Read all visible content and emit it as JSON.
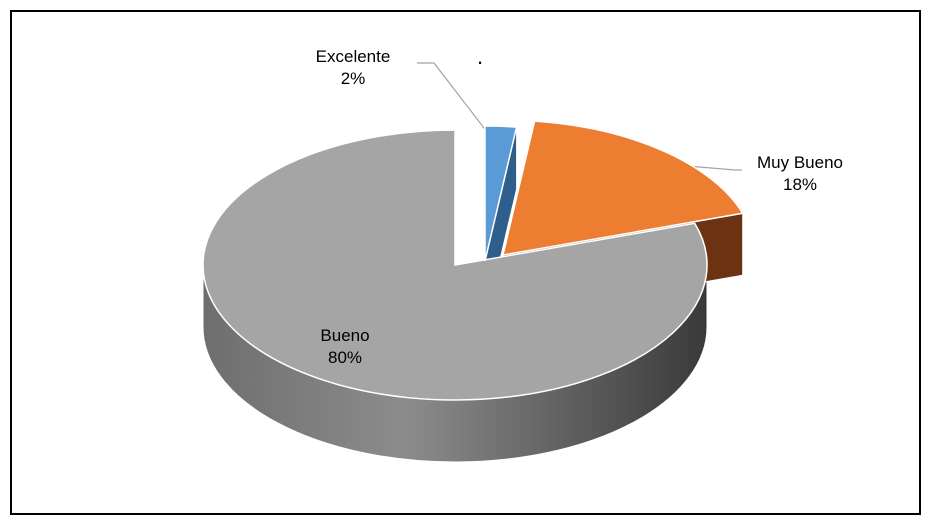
{
  "chart_data": {
    "type": "pie",
    "style": "3d-exploded",
    "title": "",
    "categories": [
      "Excelente",
      "Muy Bueno",
      "Bueno"
    ],
    "values": [
      2,
      18,
      80
    ],
    "value_labels": [
      "2%",
      "18%",
      "80%"
    ],
    "colors": [
      "#5b9bd5",
      "#ed7d31",
      "#a5a5a5"
    ],
    "legend": "none",
    "stray_mark": "."
  }
}
